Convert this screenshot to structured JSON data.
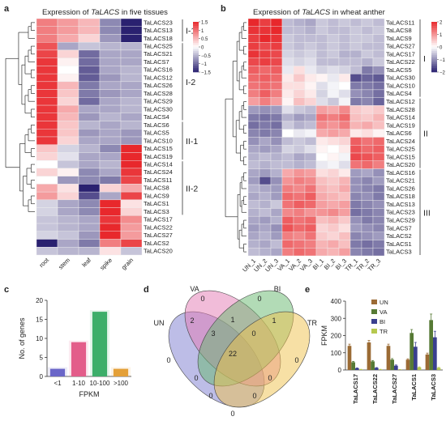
{
  "colors": {
    "high": "#e8282c",
    "mid": "#ffffff",
    "low": "#2a2170",
    "cell_stroke": "#eeeeee",
    "tree": "#333333"
  },
  "panel_a": {
    "letter": "a",
    "title_prefix": "Expression of ",
    "title_gene": "TaLACS",
    "title_suffix": " in five tissues",
    "colorbar_ticks": [
      "1.5",
      "1",
      "0.5",
      "0",
      "−0.5",
      "−1",
      "−1.5"
    ],
    "groups": [
      {
        "label": "I-1",
        "rows": 3
      },
      {
        "label": "I-2",
        "rows": 10
      },
      {
        "label": "II-1",
        "rows": 5
      },
      {
        "label": "II-2",
        "rows": 7
      }
    ]
  },
  "panel_b": {
    "letter": "b",
    "title_prefix": "Expression of ",
    "title_gene": "TaLACS",
    "title_suffix": " in wheat anther",
    "colorbar_ticks": [
      "2",
      "1",
      "0",
      "−1",
      "−2"
    ],
    "groups": [
      {
        "label": "I",
        "rows": 10
      },
      {
        "label": "II",
        "rows": 9
      },
      {
        "label": "III",
        "rows": 11
      }
    ]
  },
  "panel_c": {
    "letter": "c"
  },
  "panel_d": {
    "letter": "d"
  },
  "panel_e": {
    "letter": "e"
  },
  "chart_data": [
    {
      "type": "heatmap",
      "panel": "a",
      "title": "Expression of TaLACS in five tissues",
      "columns": [
        "root",
        "stem",
        "leaf",
        "spike",
        "grain"
      ],
      "rows": [
        "TaLACS23",
        "TaLACS13",
        "TaLACS18",
        "TaLACS25",
        "TaLACS21",
        "TaLACS7",
        "TaLACS16",
        "TaLACS12",
        "TaLACS26",
        "TaLACS28",
        "TaLACS29",
        "TaLACS30",
        "TaLACS4",
        "TaLACS6",
        "TaLACS5",
        "TaLACS10",
        "TaLACS15",
        "TaLACS19",
        "TaLACS14",
        "TaLACS24",
        "TaLACS11",
        "TaLACS8",
        "TaLACS9",
        "TaLACS1",
        "TaLACS3",
        "TaLACS17",
        "TaLACS22",
        "TaLACS27",
        "TaLACS2",
        "TaLACS20"
      ],
      "scale": [
        -1.5,
        1.5
      ],
      "values": [
        [
          0.9,
          0.7,
          0.5,
          -0.8,
          -1.6
        ],
        [
          0.9,
          0.7,
          0.5,
          -0.8,
          -1.6
        ],
        [
          0.9,
          0.6,
          0.3,
          -0.7,
          -1.5
        ],
        [
          1.2,
          -0.6,
          -0.4,
          -0.5,
          -0.5
        ],
        [
          1.3,
          0.3,
          -1.0,
          -0.6,
          -0.6
        ],
        [
          1.4,
          0.1,
          -1.0,
          -0.6,
          -0.6
        ],
        [
          1.4,
          0.0,
          -1.1,
          -0.6,
          -0.5
        ],
        [
          1.4,
          0.1,
          -1.1,
          -0.7,
          -0.5
        ],
        [
          1.4,
          0.5,
          -0.9,
          -0.6,
          -0.6
        ],
        [
          1.4,
          0.4,
          -0.9,
          -0.7,
          -0.6
        ],
        [
          1.4,
          0.3,
          -1.0,
          -0.6,
          -0.5
        ],
        [
          1.4,
          0.6,
          -0.6,
          -0.6,
          -0.5
        ],
        [
          1.4,
          0.5,
          -0.7,
          -0.5,
          -0.6
        ],
        [
          1.4,
          0.4,
          -0.5,
          -0.6,
          -0.5
        ],
        [
          1.4,
          0.4,
          -0.7,
          -0.6,
          -0.7
        ],
        [
          1.4,
          0.3,
          -0.6,
          -0.6,
          -0.7
        ],
        [
          0.4,
          -0.3,
          -0.5,
          -0.8,
          1.5
        ],
        [
          0.3,
          -0.2,
          -0.6,
          -0.6,
          1.5
        ],
        [
          0.0,
          -0.4,
          -0.6,
          -0.5,
          1.5
        ],
        [
          0.3,
          0.1,
          -0.8,
          -0.6,
          1.4
        ],
        [
          0.0,
          -0.7,
          -0.8,
          -0.9,
          1.3
        ],
        [
          0.6,
          0.2,
          -1.6,
          0.3,
          0.6
        ],
        [
          0.7,
          0.3,
          -1.2,
          -0.6,
          1.3
        ],
        [
          -0.3,
          -0.6,
          -0.8,
          1.5,
          0.2
        ],
        [
          -0.3,
          -0.6,
          -0.8,
          1.5,
          0.3
        ],
        [
          -0.4,
          -0.5,
          -0.6,
          1.4,
          0.8
        ],
        [
          -0.4,
          -0.5,
          -0.6,
          1.5,
          0.7
        ],
        [
          -0.3,
          -0.4,
          -0.7,
          1.5,
          0.7
        ],
        [
          -1.8,
          -0.6,
          -0.9,
          0.9,
          1.3
        ],
        [
          -0.4,
          -0.5,
          -0.5,
          0.2,
          -0.4
        ]
      ]
    },
    {
      "type": "heatmap",
      "panel": "b",
      "title": "Expression of TaLACS in wheat anther",
      "columns": [
        "UN_1",
        "UN_2",
        "UN_3",
        "VA_1",
        "VA_2",
        "VA_3",
        "BI_1",
        "BI_2",
        "BI_3",
        "TR_1",
        "TR_2",
        "TR_3"
      ],
      "rows": [
        "TaLACS11",
        "TaLACS8",
        "TaLACS9",
        "TaLACS27",
        "TaLACS17",
        "TaLACS22",
        "TaLACS5",
        "TaLACS30",
        "TaLACS10",
        "TaLACS4",
        "TaLACS12",
        "TaLACS28",
        "TaLACS14",
        "TaLACS19",
        "TaLACS6",
        "TaLACS24",
        "TaLACS25",
        "TaLACS15",
        "TaLACS20",
        "TaLACS16",
        "TaLACS21",
        "TaLACS26",
        "TaLACS18",
        "TaLACS13",
        "TaLACS23",
        "TaLACS29",
        "TaLACS7",
        "TaLACS2",
        "TaLACS1",
        "TaLACS3"
      ],
      "scale": [
        -2,
        2
      ],
      "values": [
        [
          2.0,
          1.8,
          2.0,
          -0.6,
          -0.7,
          -0.8,
          -0.5,
          -0.6,
          -0.5,
          -0.6,
          -0.5,
          -0.6
        ],
        [
          1.9,
          1.9,
          2.0,
          -0.6,
          -0.6,
          -0.7,
          -0.5,
          -0.6,
          -0.6,
          -0.5,
          -0.6,
          -0.5
        ],
        [
          1.8,
          2.0,
          1.9,
          -0.5,
          -0.6,
          -0.6,
          -0.6,
          -0.5,
          -0.6,
          -0.5,
          -0.5,
          -0.6
        ],
        [
          1.8,
          1.7,
          1.8,
          -0.5,
          -0.6,
          -0.5,
          -0.6,
          -0.5,
          -0.6,
          -0.5,
          -0.6,
          -0.6
        ],
        [
          1.9,
          1.8,
          1.7,
          -0.4,
          -0.5,
          -0.4,
          -0.6,
          -0.5,
          -0.7,
          -0.7,
          -0.5,
          -0.6
        ],
        [
          1.7,
          1.8,
          1.7,
          -0.3,
          -0.4,
          -0.3,
          -0.6,
          -0.6,
          -0.6,
          -0.6,
          -0.7,
          -0.5
        ],
        [
          1.5,
          1.4,
          1.5,
          -0.2,
          0.3,
          -0.2,
          -0.4,
          -0.3,
          -0.4,
          -0.6,
          -1.2,
          -1.0
        ],
        [
          1.4,
          1.5,
          1.4,
          0.2,
          0.5,
          0.2,
          0.1,
          -0.2,
          0.2,
          -1.6,
          -1.4,
          -1.5
        ],
        [
          1.3,
          1.4,
          1.3,
          0.3,
          0.3,
          0.1,
          -0.3,
          -0.1,
          0.0,
          -1.2,
          -1.2,
          -1.3
        ],
        [
          1.2,
          1.5,
          1.2,
          0.2,
          0.4,
          0.2,
          -0.4,
          -0.1,
          -0.3,
          -1.0,
          -1.1,
          -1.3
        ],
        [
          0.9,
          1.2,
          0.9,
          0.1,
          0.6,
          0.4,
          -0.3,
          -0.5,
          -0.1,
          -1.2,
          -1.1,
          -1.4
        ],
        [
          -0.9,
          -1.0,
          -0.9,
          -0.3,
          -0.5,
          -0.6,
          0.9,
          0.8,
          1.1,
          0.5,
          0.4,
          0.5
        ],
        [
          -1.2,
          -1.3,
          -1.2,
          -0.7,
          -0.9,
          -0.8,
          1.3,
          1.2,
          1.4,
          0.6,
          0.5,
          0.7
        ],
        [
          -1.3,
          -1.2,
          -1.3,
          -0.5,
          -0.7,
          -0.6,
          1.1,
          1.0,
          1.2,
          0.7,
          0.8,
          0.6
        ],
        [
          -1.1,
          -1.2,
          -1.1,
          0.0,
          -0.2,
          -0.1,
          0.8,
          0.9,
          0.8,
          0.2,
          0.3,
          0.1
        ],
        [
          -1.0,
          -0.8,
          -1.0,
          -0.6,
          -0.5,
          -0.6,
          0.2,
          0.3,
          0.4,
          1.5,
          1.3,
          1.4
        ],
        [
          -0.8,
          -0.9,
          -0.8,
          -0.4,
          -0.5,
          -0.3,
          0.1,
          0.0,
          0.2,
          1.6,
          1.4,
          1.5
        ],
        [
          -0.7,
          -0.6,
          -0.7,
          -0.6,
          -0.8,
          -0.7,
          0.0,
          0.1,
          -0.1,
          1.7,
          1.6,
          1.5
        ],
        [
          -0.6,
          -0.7,
          -0.6,
          -0.6,
          -0.7,
          -0.6,
          -0.2,
          -0.1,
          -0.3,
          1.3,
          1.4,
          1.2
        ],
        [
          -0.8,
          -0.9,
          -0.7,
          0.8,
          1.0,
          0.9,
          0.3,
          0.4,
          0.2,
          -0.9,
          -0.8,
          -1.0
        ],
        [
          -0.9,
          -1.6,
          -1.0,
          1.0,
          1.2,
          1.1,
          0.6,
          0.5,
          0.7,
          -1.0,
          -1.1,
          -0.9
        ],
        [
          -0.7,
          -0.8,
          -0.9,
          1.2,
          1.1,
          1.3,
          0.7,
          0.6,
          0.8,
          -1.0,
          -1.1,
          -1.2
        ],
        [
          -0.8,
          -0.7,
          -0.9,
          1.4,
          1.3,
          1.5,
          0.8,
          0.7,
          0.6,
          -1.1,
          -1.0,
          -1.2
        ],
        [
          -0.6,
          -0.7,
          -0.5,
          1.3,
          1.5,
          1.4,
          0.9,
          0.8,
          0.9,
          -1.2,
          -1.1,
          -1.0
        ],
        [
          -0.7,
          -0.6,
          -0.8,
          1.1,
          1.2,
          1.0,
          1.0,
          1.1,
          0.9,
          -1.3,
          -1.2,
          -1.1
        ],
        [
          -0.8,
          -0.9,
          -0.7,
          1.5,
          1.3,
          1.4,
          0.6,
          0.7,
          0.5,
          -1.0,
          -1.2,
          -1.1
        ],
        [
          -0.9,
          -0.8,
          -1.0,
          1.6,
          1.4,
          1.5,
          0.4,
          0.5,
          0.3,
          -0.9,
          -1.0,
          -1.1
        ],
        [
          -0.8,
          -0.7,
          -0.9,
          1.2,
          1.1,
          1.3,
          0.5,
          0.4,
          0.6,
          -1.1,
          -1.0,
          -0.9
        ],
        [
          -0.7,
          -0.8,
          -0.6,
          1.4,
          1.3,
          1.2,
          0.7,
          0.8,
          0.6,
          -1.2,
          -1.3,
          -1.2
        ],
        [
          -0.6,
          -0.7,
          -0.8,
          1.2,
          1.4,
          1.3,
          0.8,
          0.7,
          0.9,
          -1.1,
          -1.2,
          -1.3
        ]
      ]
    },
    {
      "type": "bar",
      "panel": "c",
      "categories": [
        "<1",
        "1-10",
        "10-100",
        ">100"
      ],
      "values": [
        2,
        9,
        17,
        2
      ],
      "colors": [
        "#6a66c8",
        "#e35d8a",
        "#3dae6a",
        "#e4a038"
      ],
      "xlabel": "FPKM",
      "ylabel": "No. of genes",
      "ylim": [
        0,
        20
      ],
      "yticks": [
        0,
        5,
        10,
        15,
        20
      ]
    },
    {
      "type": "venn",
      "panel": "d",
      "sets": [
        {
          "name": "UN",
          "color": "#7c7bd0"
        },
        {
          "name": "VA",
          "color": "#e37ab4"
        },
        {
          "name": "BI",
          "color": "#66b86e"
        },
        {
          "name": "TR",
          "color": "#f0c14b"
        }
      ],
      "region_counts": [
        "0",
        "2",
        "0",
        "0",
        "3",
        "1",
        "0",
        "1",
        "0",
        "22",
        "0",
        "0",
        "0",
        "0",
        "0"
      ]
    },
    {
      "type": "bar",
      "panel": "e",
      "categories": [
        "TaLACS17",
        "TaLACS22",
        "TaLACS27",
        "TaLACS1",
        "TaLACS3"
      ],
      "series": [
        {
          "name": "UN",
          "color": "#9b6b35",
          "values": [
            140,
            160,
            140,
            60,
            90
          ],
          "err": [
            10,
            12,
            10,
            5,
            8
          ]
        },
        {
          "name": "VA",
          "color": "#567a35",
          "values": [
            45,
            50,
            60,
            215,
            290
          ],
          "err": [
            5,
            5,
            6,
            20,
            35
          ]
        },
        {
          "name": "BI",
          "color": "#3a3f8f",
          "values": [
            10,
            12,
            25,
            135,
            190
          ],
          "err": [
            2,
            2,
            4,
            25,
            35
          ]
        },
        {
          "name": "TR",
          "color": "#b6c84e",
          "values": [
            3,
            3,
            2,
            15,
            12
          ],
          "err": [
            1,
            1,
            1,
            3,
            3
          ]
        }
      ],
      "ylabel": "FPKM",
      "ylim": [
        0,
        400
      ],
      "yticks": [
        0,
        100,
        200,
        300,
        400
      ]
    }
  ]
}
